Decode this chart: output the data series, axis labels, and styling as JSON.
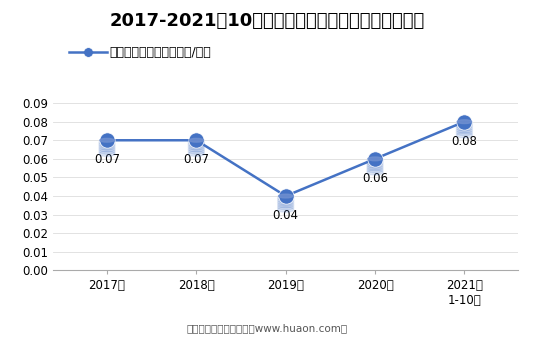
{
  "title": "2017-2021年10月大连商品交易所豆粕期权成交均价",
  "legend_label": "豆粕期权成交均价（万元/手）",
  "x_labels": [
    "2017年",
    "2018年",
    "2019年",
    "2020年",
    "2021年\n1-10月"
  ],
  "y_values": [
    0.07,
    0.07,
    0.04,
    0.06,
    0.08
  ],
  "data_labels": [
    "0.07",
    "0.07",
    "0.04",
    "0.06",
    "0.08"
  ],
  "ylim": [
    0.0,
    0.1
  ],
  "yticks": [
    0.0,
    0.01,
    0.02,
    0.03,
    0.04,
    0.05,
    0.06,
    0.07,
    0.08,
    0.09
  ],
  "line_color": "#4472C4",
  "marker_color": "#4472C4",
  "background_color": "#FFFFFF",
  "footer_text": "制图：华经产业研究院（www.huaon.com）",
  "title_fontsize": 13,
  "label_fontsize": 8.5,
  "tick_fontsize": 8.5,
  "legend_fontsize": 9,
  "footer_fontsize": 7.5
}
